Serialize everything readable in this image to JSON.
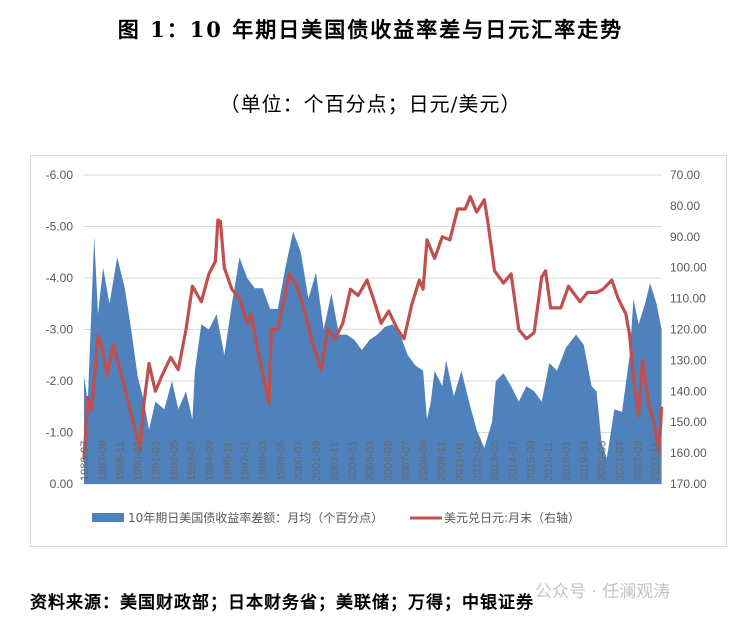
{
  "title": "图 1：10 年期日美国债收益率差与日元汇率走势",
  "subtitle": "（单位：个百分点；日元/美元）",
  "source": "资料来源：美国财政部；日本财务省；美联储；万得；中银证券",
  "watermark": "公众号 · 任澜观涛",
  "chart_data": {
    "type": "area+line",
    "title": "",
    "legend_position": "bottom",
    "grid": true,
    "left_axis": {
      "ylim": [
        -6,
        0
      ],
      "reversed": true,
      "ticks": [
        "-6.00",
        "-5.00",
        "-4.00",
        "-3.00",
        "-2.00",
        "-1.00",
        "0.00"
      ]
    },
    "right_axis": {
      "ylim": [
        70,
        170
      ],
      "reversed": true,
      "ticks": [
        "70.00",
        "80.00",
        "90.00",
        "100.00",
        "110.00",
        "120.00",
        "130.00",
        "140.00",
        "150.00",
        "160.00",
        "170.00"
      ]
    },
    "x_ticks": [
      "1986-07",
      "1987-09",
      "1988-11",
      "1990-01",
      "1991-03",
      "1992-05",
      "1993-07",
      "1994-09",
      "1995-11",
      "1997-01",
      "1998-03",
      "1999-05",
      "2000-07",
      "2001-09",
      "2002-11",
      "2004-01",
      "2005-03",
      "2006-05",
      "2007-07",
      "2008-09",
      "2009-11",
      "2011-01",
      "2012-03",
      "2013-05",
      "2014-07",
      "2015-09",
      "2016-11",
      "2018-01",
      "2019-03",
      "2020-05",
      "2021-07",
      "2022-09",
      "2023-11"
    ],
    "series": [
      {
        "name": "10年期日美国债收益率差额：月均（个百分点）",
        "type": "area",
        "axis": "left",
        "color": "#4F81BD",
        "points": [
          [
            "1986-07",
            -2.1
          ],
          [
            "1986-10",
            -1.6
          ],
          [
            "1987-03",
            -4.8
          ],
          [
            "1987-06",
            -3.3
          ],
          [
            "1987-10",
            -4.2
          ],
          [
            "1988-03",
            -3.5
          ],
          [
            "1988-09",
            -4.4
          ],
          [
            "1989-03",
            -3.8
          ],
          [
            "1989-08",
            -3.0
          ],
          [
            "1990-01",
            -2.1
          ],
          [
            "1990-06",
            -1.6
          ],
          [
            "1990-10",
            -1.05
          ],
          [
            "1991-03",
            -1.6
          ],
          [
            "1991-10",
            -1.45
          ],
          [
            "1992-04",
            -2.0
          ],
          [
            "1992-09",
            -1.45
          ],
          [
            "1993-03",
            -1.8
          ],
          [
            "1993-08",
            -1.25
          ],
          [
            "1993-10",
            -2.2
          ],
          [
            "1994-03",
            -3.1
          ],
          [
            "1994-09",
            -3.0
          ],
          [
            "1995-03",
            -3.3
          ],
          [
            "1995-09",
            -2.5
          ],
          [
            "1996-03",
            -3.5
          ],
          [
            "1996-09",
            -4.4
          ],
          [
            "1997-03",
            -4.0
          ],
          [
            "1997-09",
            -3.8
          ],
          [
            "1998-03",
            -3.8
          ],
          [
            "1998-09",
            -3.4
          ],
          [
            "1999-03",
            -3.4
          ],
          [
            "1999-09",
            -4.2
          ],
          [
            "2000-03",
            -4.9
          ],
          [
            "2000-09",
            -4.5
          ],
          [
            "2001-03",
            -3.6
          ],
          [
            "2001-09",
            -4.1
          ],
          [
            "2002-03",
            -3.0
          ],
          [
            "2002-09",
            -3.7
          ],
          [
            "2003-03",
            -2.9
          ],
          [
            "2003-09",
            -2.9
          ],
          [
            "2004-03",
            -2.8
          ],
          [
            "2004-09",
            -2.6
          ],
          [
            "2005-03",
            -2.8
          ],
          [
            "2005-09",
            -2.9
          ],
          [
            "2006-03",
            -3.05
          ],
          [
            "2006-09",
            -3.1
          ],
          [
            "2007-03",
            -2.9
          ],
          [
            "2007-09",
            -2.5
          ],
          [
            "2008-03",
            -2.3
          ],
          [
            "2008-09",
            -2.2
          ],
          [
            "2008-12",
            -1.25
          ],
          [
            "2009-03",
            -1.6
          ],
          [
            "2009-06",
            -2.2
          ],
          [
            "2009-12",
            -1.9
          ],
          [
            "2010-03",
            -2.4
          ],
          [
            "2010-09",
            -1.7
          ],
          [
            "2011-03",
            -2.2
          ],
          [
            "2011-09",
            -1.6
          ],
          [
            "2012-03",
            -1.05
          ],
          [
            "2012-09",
            -0.7
          ],
          [
            "2013-03",
            -1.2
          ],
          [
            "2013-06",
            -2.0
          ],
          [
            "2013-12",
            -2.15
          ],
          [
            "2014-06",
            -1.9
          ],
          [
            "2014-12",
            -1.6
          ],
          [
            "2015-06",
            -1.9
          ],
          [
            "2015-12",
            -1.8
          ],
          [
            "2016-06",
            -1.6
          ],
          [
            "2016-12",
            -2.35
          ],
          [
            "2017-06",
            -2.2
          ],
          [
            "2018-01",
            -2.65
          ],
          [
            "2018-09",
            -2.9
          ],
          [
            "2019-03",
            -2.7
          ],
          [
            "2019-09",
            -1.9
          ],
          [
            "2020-01",
            -1.8
          ],
          [
            "2020-05",
            -0.8
          ],
          [
            "2020-09",
            -0.5
          ],
          [
            "2021-03",
            -1.45
          ],
          [
            "2021-09",
            -1.4
          ],
          [
            "2022-03",
            -2.5
          ],
          [
            "2022-06",
            -3.6
          ],
          [
            "2022-10",
            -3.1
          ],
          [
            "2023-03",
            -3.5
          ],
          [
            "2023-07",
            -3.9
          ],
          [
            "2023-12",
            -3.5
          ],
          [
            "2024-04",
            -3.0
          ]
        ]
      },
      {
        "name": "美元兑日元:月末（右轴）",
        "type": "line",
        "axis": "right",
        "color": "#C0504D",
        "points": [
          [
            "1986-07",
            162
          ],
          [
            "1986-10",
            142
          ],
          [
            "1987-01",
            146
          ],
          [
            "1987-06",
            122
          ],
          [
            "1987-10",
            127
          ],
          [
            "1988-01",
            135
          ],
          [
            "1988-06",
            125
          ],
          [
            "1988-12",
            134
          ],
          [
            "1989-06",
            144
          ],
          [
            "1990-03",
            159
          ],
          [
            "1990-06",
            144
          ],
          [
            "1990-10",
            131
          ],
          [
            "1991-03",
            140
          ],
          [
            "1991-08",
            135
          ],
          [
            "1992-03",
            129
          ],
          [
            "1992-09",
            133
          ],
          [
            "1993-03",
            120
          ],
          [
            "1993-08",
            106
          ],
          [
            "1994-03",
            111
          ],
          [
            "1994-09",
            102
          ],
          [
            "1995-02",
            98
          ],
          [
            "1995-04",
            84.6
          ],
          [
            "1995-06",
            85
          ],
          [
            "1995-09",
            100
          ],
          [
            "1996-03",
            107
          ],
          [
            "1996-09",
            110
          ],
          [
            "1997-03",
            118
          ],
          [
            "1997-06",
            115
          ],
          [
            "1997-12",
            128
          ],
          [
            "1998-08",
            144
          ],
          [
            "1998-10",
            120
          ],
          [
            "1999-03",
            120
          ],
          [
            "1999-12",
            102
          ],
          [
            "2000-06",
            106
          ],
          [
            "2000-12",
            114
          ],
          [
            "2001-06",
            124
          ],
          [
            "2002-01",
            133
          ],
          [
            "2002-06",
            120
          ],
          [
            "2002-12",
            123
          ],
          [
            "2003-06",
            118
          ],
          [
            "2003-12",
            107
          ],
          [
            "2004-06",
            109
          ],
          [
            "2005-01",
            104
          ],
          [
            "2005-06",
            110
          ],
          [
            "2005-12",
            118
          ],
          [
            "2006-06",
            114
          ],
          [
            "2007-01",
            120
          ],
          [
            "2007-06",
            123
          ],
          [
            "2007-12",
            112
          ],
          [
            "2008-06",
            104
          ],
          [
            "2008-09",
            107
          ],
          [
            "2008-12",
            91
          ],
          [
            "2009-06",
            97
          ],
          [
            "2009-12",
            90
          ],
          [
            "2010-06",
            91
          ],
          [
            "2010-12",
            81
          ],
          [
            "2011-06",
            81
          ],
          [
            "2011-10",
            77
          ],
          [
            "2012-03",
            82
          ],
          [
            "2012-09",
            78
          ],
          [
            "2012-12",
            86
          ],
          [
            "2013-05",
            101
          ],
          [
            "2013-12",
            105
          ],
          [
            "2014-06",
            102
          ],
          [
            "2014-12",
            120
          ],
          [
            "2015-06",
            123
          ],
          [
            "2015-12",
            121
          ],
          [
            "2016-06",
            103
          ],
          [
            "2016-09",
            101
          ],
          [
            "2017-01",
            113
          ],
          [
            "2017-09",
            113
          ],
          [
            "2018-03",
            106
          ],
          [
            "2018-12",
            111
          ],
          [
            "2019-06",
            108
          ],
          [
            "2020-01",
            108
          ],
          [
            "2020-06",
            107
          ],
          [
            "2021-01",
            104
          ],
          [
            "2021-06",
            110
          ],
          [
            "2021-12",
            115
          ],
          [
            "2022-03",
            122
          ],
          [
            "2022-06",
            136
          ],
          [
            "2022-10",
            148
          ],
          [
            "2023-01",
            130
          ],
          [
            "2023-06",
            144
          ],
          [
            "2023-10",
            150
          ],
          [
            "2024-02",
            160
          ],
          [
            "2024-04",
            145
          ]
        ]
      }
    ]
  }
}
